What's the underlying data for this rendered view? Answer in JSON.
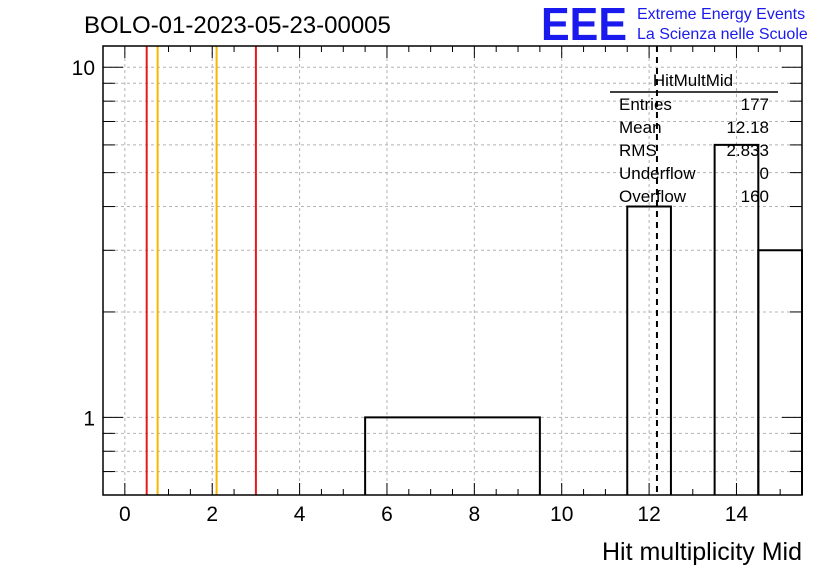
{
  "header": {
    "run_title": "BOLO-01-2023-05-23-00005",
    "logo_text": "EEE",
    "logo_line1": "Extreme Energy Events",
    "logo_line2": "La Scienza nelle Scuole"
  },
  "stats_box": {
    "title": "HitMultMid",
    "rows": [
      {
        "label": "Entries",
        "value": "177"
      },
      {
        "label": "Mean",
        "value": "12.18"
      },
      {
        "label": "RMS",
        "value": "2.833"
      },
      {
        "label": "Underflow",
        "value": "0"
      },
      {
        "label": "Overflow",
        "value": "160"
      }
    ]
  },
  "chart_data": {
    "type": "histogram",
    "title": "BOLO-01-2023-05-23-00005",
    "xlabel": "Hit multiplicity Mid",
    "ylabel": "",
    "xlim": [
      -0.5,
      15.5
    ],
    "ylim": [
      0.6,
      11.5
    ],
    "y_scale": "log",
    "grid": true,
    "x_ticks": [
      "0",
      "2",
      "4",
      "6",
      "8",
      "10",
      "12",
      "14"
    ],
    "y_ticks": [
      "1",
      "10"
    ],
    "bins": [
      {
        "x0": 5.5,
        "x1": 9.5,
        "count": 1
      },
      {
        "x0": 11.5,
        "x1": 12.5,
        "count": 4
      },
      {
        "x0": 13.5,
        "x1": 14.5,
        "count": 6
      },
      {
        "x0": 14.5,
        "x1": 15.5,
        "count": 3
      }
    ],
    "vertical_markers": [
      {
        "x": 0.5,
        "color": "#e8191c"
      },
      {
        "x": 0.75,
        "color": "#f5b800"
      },
      {
        "x": 2.1,
        "color": "#f5b800"
      },
      {
        "x": 3.0,
        "color": "#e8191c"
      }
    ],
    "mean_line_x": 12.18,
    "colors": {
      "histogram": "#000000",
      "grid": "#b4b4b4",
      "logo": "#1a1aee"
    }
  }
}
